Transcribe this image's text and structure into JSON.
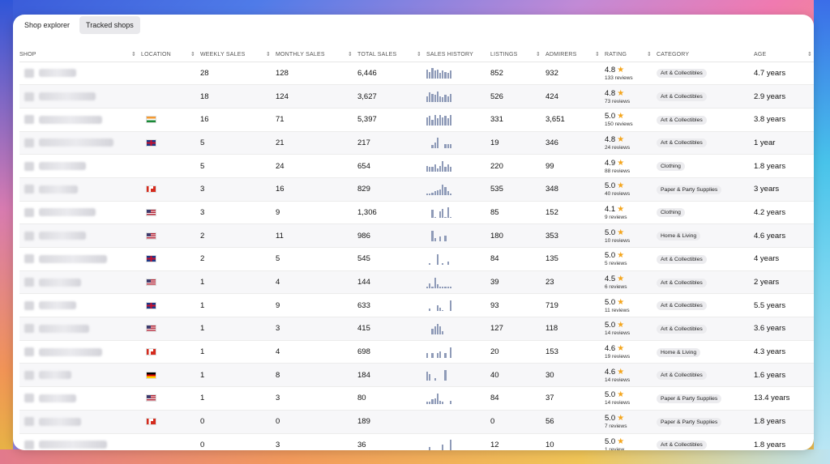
{
  "tabs": [
    {
      "label": "Shop explorer",
      "active": false
    },
    {
      "label": "Tracked shops",
      "active": true
    }
  ],
  "columns": {
    "shop": "SHOP",
    "location": "LOCATION",
    "weekly_sales": "WEEKLY SALES",
    "monthly_sales": "MONTHLY SALES",
    "total_sales": "TOTAL SALES",
    "sales_history": "SALES HISTORY",
    "listings": "LISTINGS",
    "admirers": "ADMIRERS",
    "rating": "RATING",
    "category": "CATEGORY",
    "age": "AGE"
  },
  "sort_icon": "sort-updown-icon",
  "colors": {
    "star": "#f4a51c",
    "spark_bar": "#8f9bb8",
    "badge_bg": "#ececef"
  },
  "rows": [
    {
      "flag": "",
      "weekly": "28",
      "monthly": "128",
      "total": "6,446",
      "spark": [
        8,
        6,
        9,
        7,
        8,
        5,
        7,
        6,
        5,
        7
      ],
      "listings": "852",
      "admirers": "932",
      "rating": "4.8",
      "reviews": "133 reviews",
      "category": "Art & Collectibles",
      "age": "4.7 years"
    },
    {
      "flag": "",
      "weekly": "18",
      "monthly": "124",
      "total": "3,627",
      "spark": [
        5,
        8,
        7,
        6,
        9,
        5,
        4,
        6,
        5,
        7
      ],
      "listings": "526",
      "admirers": "424",
      "rating": "4.8",
      "reviews": "73 reviews",
      "category": "Art & Collectibles",
      "age": "2.9 years"
    },
    {
      "flag": "in",
      "weekly": "16",
      "monthly": "71",
      "total": "5,397",
      "spark": [
        7,
        8,
        5,
        9,
        6,
        9,
        7,
        8,
        6,
        9
      ],
      "listings": "331",
      "admirers": "3,651",
      "rating": "5.0",
      "reviews": "150 reviews",
      "category": "Art & Collectibles",
      "age": "3.8 years"
    },
    {
      "flag": "gb",
      "weekly": "5",
      "monthly": "21",
      "total": "217",
      "spark": [
        0,
        0,
        3,
        5,
        9,
        0,
        0,
        4,
        4,
        4
      ],
      "listings": "19",
      "admirers": "346",
      "rating": "4.8",
      "reviews": "24 reviews",
      "category": "Art & Collectibles",
      "age": "1 year"
    },
    {
      "flag": "",
      "weekly": "5",
      "monthly": "24",
      "total": "654",
      "spark": [
        5,
        4,
        4,
        6,
        3,
        5,
        9,
        4,
        6,
        4
      ],
      "listings": "220",
      "admirers": "99",
      "rating": "4.9",
      "reviews": "88 reviews",
      "category": "Clothing",
      "age": "1.8 years"
    },
    {
      "flag": "ca",
      "weekly": "3",
      "monthly": "16",
      "total": "829",
      "spark": [
        1,
        1,
        2,
        3,
        4,
        5,
        9,
        7,
        3,
        1
      ],
      "listings": "535",
      "admirers": "348",
      "rating": "5.0",
      "reviews": "40 reviews",
      "category": "Paper & Party Supplies",
      "age": "3 years"
    },
    {
      "flag": "us",
      "weekly": "3",
      "monthly": "9",
      "total": "1,306",
      "spark": [
        0,
        0,
        7,
        1,
        0,
        6,
        8,
        1,
        9,
        1
      ],
      "listings": "85",
      "admirers": "152",
      "rating": "4.1",
      "reviews": "9 reviews",
      "category": "Clothing",
      "age": "4.2 years"
    },
    {
      "flag": "us",
      "weekly": "2",
      "monthly": "11",
      "total": "986",
      "spark": [
        0,
        0,
        9,
        3,
        0,
        4,
        0,
        5,
        0,
        0
      ],
      "listings": "180",
      "admirers": "353",
      "rating": "5.0",
      "reviews": "10 reviews",
      "category": "Home & Living",
      "age": "4.6 years"
    },
    {
      "flag": "gb",
      "weekly": "2",
      "monthly": "5",
      "total": "545",
      "spark": [
        0,
        1,
        0,
        0,
        9,
        0,
        1,
        0,
        3,
        0
      ],
      "listings": "84",
      "admirers": "135",
      "rating": "5.0",
      "reviews": "5 reviews",
      "category": "Art & Collectibles",
      "age": "4 years"
    },
    {
      "flag": "us",
      "weekly": "1",
      "monthly": "4",
      "total": "144",
      "spark": [
        1,
        4,
        1,
        9,
        3,
        1,
        1,
        1,
        1,
        1
      ],
      "listings": "39",
      "admirers": "23",
      "rating": "4.5",
      "reviews": "6 reviews",
      "category": "Art & Collectibles",
      "age": "2 years"
    },
    {
      "flag": "gb",
      "weekly": "1",
      "monthly": "9",
      "total": "633",
      "spark": [
        0,
        2,
        0,
        0,
        5,
        3,
        1,
        0,
        0,
        9
      ],
      "listings": "93",
      "admirers": "719",
      "rating": "5.0",
      "reviews": "11 reviews",
      "category": "Art & Collectibles",
      "age": "5.5 years"
    },
    {
      "flag": "us",
      "weekly": "1",
      "monthly": "3",
      "total": "415",
      "spark": [
        0,
        0,
        5,
        7,
        9,
        7,
        3,
        0,
        0,
        0
      ],
      "listings": "127",
      "admirers": "118",
      "rating": "5.0",
      "reviews": "14 reviews",
      "category": "Art & Collectibles",
      "age": "3.6 years"
    },
    {
      "flag": "ca",
      "weekly": "1",
      "monthly": "4",
      "total": "698",
      "spark": [
        4,
        0,
        4,
        0,
        4,
        5,
        0,
        4,
        0,
        9
      ],
      "listings": "20",
      "admirers": "153",
      "rating": "4.6",
      "reviews": "19 reviews",
      "category": "Home & Living",
      "age": "4.3 years"
    },
    {
      "flag": "de",
      "weekly": "1",
      "monthly": "8",
      "total": "184",
      "spark": [
        8,
        6,
        0,
        2,
        0,
        0,
        0,
        9,
        0,
        0
      ],
      "listings": "40",
      "admirers": "30",
      "rating": "4.6",
      "reviews": "14 reviews",
      "category": "Art & Collectibles",
      "age": "1.6 years"
    },
    {
      "flag": "us",
      "weekly": "1",
      "monthly": "3",
      "total": "80",
      "spark": [
        2,
        2,
        4,
        5,
        9,
        3,
        2,
        0,
        0,
        3
      ],
      "listings": "84",
      "admirers": "37",
      "rating": "5.0",
      "reviews": "14 reviews",
      "category": "Paper & Party Supplies",
      "age": "13.4 years"
    },
    {
      "flag": "ca",
      "weekly": "0",
      "monthly": "0",
      "total": "189",
      "spark": [],
      "listings": "0",
      "admirers": "56",
      "rating": "5.0",
      "reviews": "7 reviews",
      "category": "Paper & Party Supplies",
      "age": "1.8 years"
    },
    {
      "flag": "",
      "weekly": "0",
      "monthly": "3",
      "total": "36",
      "spark": [
        0,
        3,
        0,
        0,
        0,
        0,
        5,
        0,
        0,
        9
      ],
      "listings": "12",
      "admirers": "10",
      "rating": "5.0",
      "reviews": "1 review",
      "category": "Art & Collectibles",
      "age": "1.8 years"
    }
  ]
}
